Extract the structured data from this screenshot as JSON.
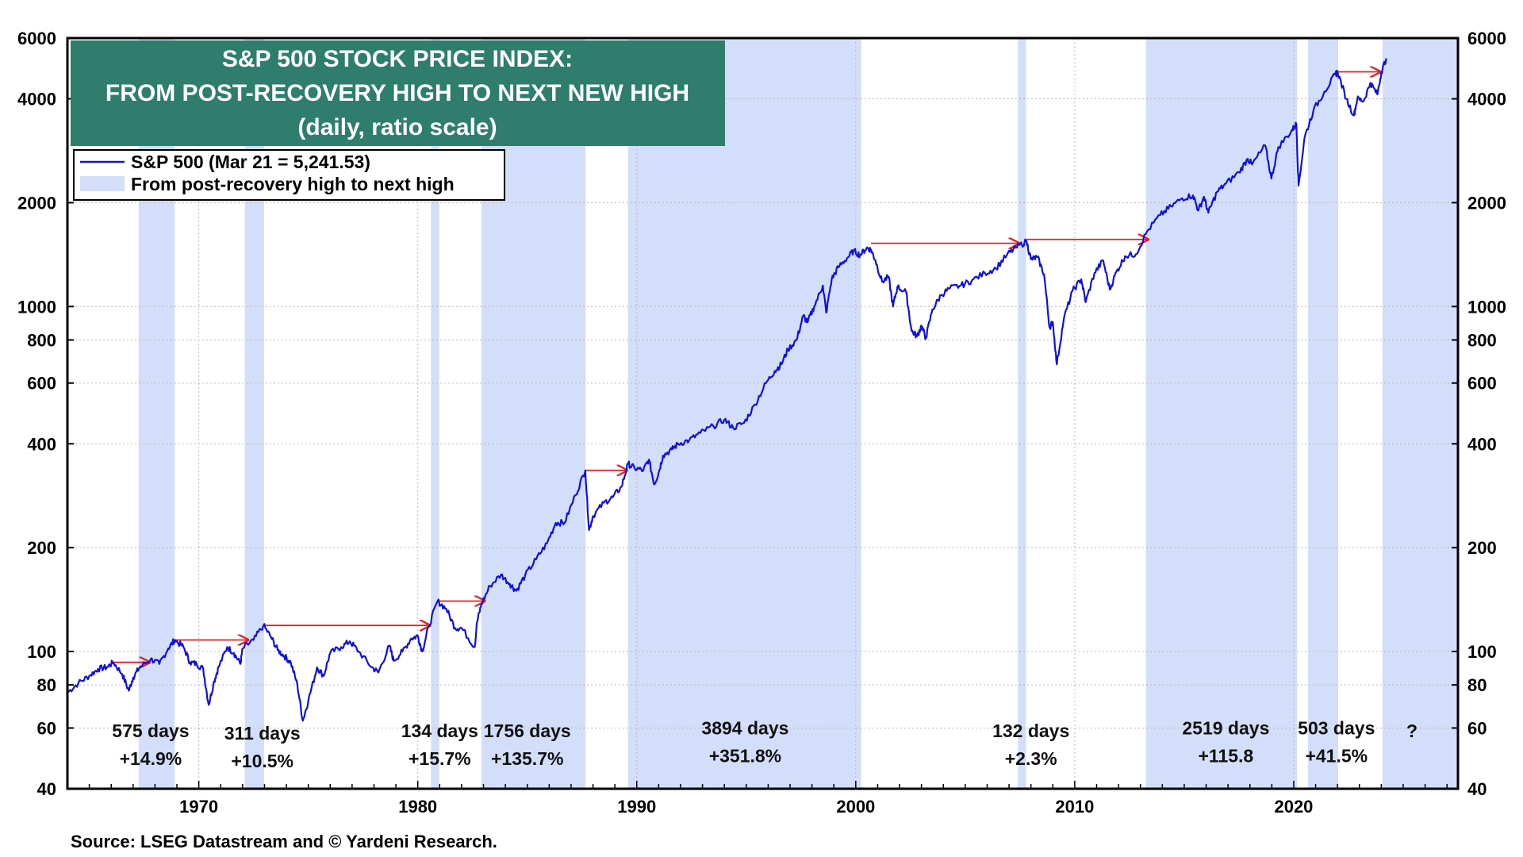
{
  "chart_data": {
    "type": "line",
    "title": {
      "line1": "S&P 500 STOCK PRICE INDEX:",
      "line2": "FROM POST-RECOVERY HIGH TO NEXT NEW HIGH",
      "line3": "(daily, ratio scale)"
    },
    "legend": {
      "series_label": "S&P 500 (Mar 21 = 5,241.53)",
      "shade_label": "From post-recovery high to next high",
      "placement": "top-left"
    },
    "source": "Source: LSEG Datastream and © Yardeni Research.",
    "y_scale": "log",
    "ylim": [
      40,
      6000
    ],
    "xlim": [
      1964.0,
      2027.5
    ],
    "y_ticks": [
      {
        "value": 40,
        "label": "40"
      },
      {
        "value": 60,
        "label": "60"
      },
      {
        "value": 80,
        "label": "80"
      },
      {
        "value": 100,
        "label": "100"
      },
      {
        "value": 200,
        "label": "200"
      },
      {
        "value": 400,
        "label": "400"
      },
      {
        "value": 600,
        "label": "600"
      },
      {
        "value": 800,
        "label": "800"
      },
      {
        "value": 1000,
        "label": "1000"
      },
      {
        "value": 2000,
        "label": "2000"
      },
      {
        "value": 4000,
        "label": "4000"
      },
      {
        "value": 6000,
        "label": "6000"
      }
    ],
    "x_ticks": [
      {
        "value": 1970,
        "label": "1970"
      },
      {
        "value": 1980,
        "label": "1980"
      },
      {
        "value": 1990,
        "label": "1990"
      },
      {
        "value": 2000,
        "label": "2000"
      },
      {
        "value": 2010,
        "label": "2010"
      },
      {
        "value": 2020,
        "label": "2020"
      }
    ],
    "shade_color": "#d3defa",
    "line_color": "#1010e0",
    "arrow_color": "#e02020",
    "title_bg": "#2e7d6d",
    "series": [
      {
        "name": "S&P 500",
        "points": [
          [
            1964.0,
            76
          ],
          [
            1964.5,
            81
          ],
          [
            1965.0,
            85
          ],
          [
            1965.4,
            89
          ],
          [
            1965.8,
            90
          ],
          [
            1966.1,
            93
          ],
          [
            1966.5,
            86
          ],
          [
            1966.8,
            77
          ],
          [
            1967.0,
            84
          ],
          [
            1967.3,
            90
          ],
          [
            1967.8,
            95
          ],
          [
            1968.2,
            92
          ],
          [
            1968.6,
            102
          ],
          [
            1968.9,
            108
          ],
          [
            1969.3,
            103
          ],
          [
            1969.6,
            93
          ],
          [
            1969.9,
            92
          ],
          [
            1970.2,
            89
          ],
          [
            1970.45,
            70
          ],
          [
            1970.7,
            82
          ],
          [
            1970.9,
            90
          ],
          [
            1971.3,
            103
          ],
          [
            1971.6,
            99
          ],
          [
            1971.9,
            92
          ],
          [
            1972.0,
            102
          ],
          [
            1972.5,
            108
          ],
          [
            1972.95,
            119
          ],
          [
            1973.3,
            110
          ],
          [
            1973.6,
            101
          ],
          [
            1973.9,
            97
          ],
          [
            1974.2,
            93
          ],
          [
            1974.5,
            80
          ],
          [
            1974.75,
            63
          ],
          [
            1975.0,
            72
          ],
          [
            1975.4,
            90
          ],
          [
            1975.7,
            85
          ],
          [
            1976.0,
            99
          ],
          [
            1976.5,
            103
          ],
          [
            1976.9,
            107
          ],
          [
            1977.3,
            100
          ],
          [
            1977.9,
            90
          ],
          [
            1978.2,
            87
          ],
          [
            1978.7,
            104
          ],
          [
            1978.9,
            94
          ],
          [
            1979.3,
            100
          ],
          [
            1979.7,
            109
          ],
          [
            1980.0,
            111
          ],
          [
            1980.2,
            100
          ],
          [
            1980.5,
            118
          ],
          [
            1980.9,
            140
          ],
          [
            1981.3,
            133
          ],
          [
            1981.7,
            117
          ],
          [
            1982.0,
            117
          ],
          [
            1982.6,
            103
          ],
          [
            1982.7,
            121
          ],
          [
            1982.9,
            137
          ],
          [
            1983.3,
            155
          ],
          [
            1983.8,
            167
          ],
          [
            1984.2,
            157
          ],
          [
            1984.5,
            150
          ],
          [
            1984.9,
            166
          ],
          [
            1985.4,
            185
          ],
          [
            1985.9,
            206
          ],
          [
            1986.3,
            236
          ],
          [
            1986.7,
            236
          ],
          [
            1987.2,
            284
          ],
          [
            1987.65,
            335
          ],
          [
            1987.82,
            225
          ],
          [
            1988.0,
            247
          ],
          [
            1988.5,
            270
          ],
          [
            1988.9,
            280
          ],
          [
            1989.3,
            300
          ],
          [
            1989.6,
            350
          ],
          [
            1989.9,
            340
          ],
          [
            1990.3,
            335
          ],
          [
            1990.55,
            360
          ],
          [
            1990.8,
            305
          ],
          [
            1991.0,
            330
          ],
          [
            1991.2,
            370
          ],
          [
            1991.6,
            385
          ],
          [
            1991.9,
            400
          ],
          [
            1992.4,
            410
          ],
          [
            1992.9,
            430
          ],
          [
            1993.5,
            450
          ],
          [
            1994.0,
            470
          ],
          [
            1994.4,
            445
          ],
          [
            1994.9,
            460
          ],
          [
            1995.4,
            520
          ],
          [
            1995.9,
            600
          ],
          [
            1996.3,
            650
          ],
          [
            1996.6,
            680
          ],
          [
            1996.9,
            750
          ],
          [
            1997.3,
            800
          ],
          [
            1997.6,
            940
          ],
          [
            1997.8,
            900
          ],
          [
            1998.1,
            1000
          ],
          [
            1998.5,
            1150
          ],
          [
            1998.65,
            960
          ],
          [
            1998.9,
            1200
          ],
          [
            1999.2,
            1300
          ],
          [
            1999.6,
            1380
          ],
          [
            1999.9,
            1450
          ],
          [
            2000.2,
            1410
          ],
          [
            2000.5,
            1480
          ],
          [
            2000.7,
            1460
          ],
          [
            2000.9,
            1360
          ],
          [
            2001.2,
            1180
          ],
          [
            2001.5,
            1220
          ],
          [
            2001.7,
            1000
          ],
          [
            2001.9,
            1140
          ],
          [
            2002.3,
            1100
          ],
          [
            2002.55,
            850
          ],
          [
            2002.8,
            820
          ],
          [
            2003.0,
            880
          ],
          [
            2003.2,
            810
          ],
          [
            2003.5,
            980
          ],
          [
            2003.9,
            1080
          ],
          [
            2004.3,
            1130
          ],
          [
            2004.8,
            1150
          ],
          [
            2005.3,
            1190
          ],
          [
            2005.9,
            1250
          ],
          [
            2006.4,
            1290
          ],
          [
            2006.9,
            1410
          ],
          [
            2007.3,
            1480
          ],
          [
            2007.8,
            1545
          ],
          [
            2008.0,
            1370
          ],
          [
            2008.3,
            1390
          ],
          [
            2008.6,
            1240
          ],
          [
            2008.85,
            870
          ],
          [
            2009.0,
            900
          ],
          [
            2009.18,
            680
          ],
          [
            2009.5,
            920
          ],
          [
            2009.9,
            1110
          ],
          [
            2010.3,
            1200
          ],
          [
            2010.5,
            1030
          ],
          [
            2010.9,
            1250
          ],
          [
            2011.3,
            1360
          ],
          [
            2011.6,
            1120
          ],
          [
            2011.9,
            1260
          ],
          [
            2012.3,
            1400
          ],
          [
            2012.8,
            1420
          ],
          [
            2013.3,
            1650
          ],
          [
            2013.9,
            1840
          ],
          [
            2014.4,
            1950
          ],
          [
            2014.9,
            2060
          ],
          [
            2015.4,
            2100
          ],
          [
            2015.65,
            1900
          ],
          [
            2015.9,
            2080
          ],
          [
            2016.1,
            1870
          ],
          [
            2016.5,
            2150
          ],
          [
            2016.9,
            2270
          ],
          [
            2017.5,
            2450
          ],
          [
            2017.9,
            2680
          ],
          [
            2018.1,
            2580
          ],
          [
            2018.7,
            2930
          ],
          [
            2018.98,
            2350
          ],
          [
            2019.3,
            2900
          ],
          [
            2019.9,
            3230
          ],
          [
            2020.12,
            3380
          ],
          [
            2020.22,
            2240
          ],
          [
            2020.5,
            3100
          ],
          [
            2020.9,
            3700
          ],
          [
            2021.4,
            4200
          ],
          [
            2021.9,
            4700
          ],
          [
            2022.0,
            4790
          ],
          [
            2022.4,
            4000
          ],
          [
            2022.75,
            3580
          ],
          [
            2022.9,
            4000
          ],
          [
            2023.2,
            3950
          ],
          [
            2023.5,
            4450
          ],
          [
            2023.82,
            4120
          ],
          [
            2024.0,
            4770
          ],
          [
            2024.22,
            5241
          ]
        ]
      }
    ],
    "shaded_periods": [
      {
        "start": 1967.25,
        "end": 1968.9
      },
      {
        "start": 1972.1,
        "end": 1972.98
      },
      {
        "start": 1980.6,
        "end": 1980.98
      },
      {
        "start": 1982.9,
        "end": 1987.66
      },
      {
        "start": 1989.6,
        "end": 2000.25
      },
      {
        "start": 2007.4,
        "end": 2007.78
      },
      {
        "start": 2013.25,
        "end": 2020.15
      },
      {
        "start": 2020.65,
        "end": 2022.03
      },
      {
        "start": 2024.05,
        "end": 2027.5
      }
    ],
    "arrows": [
      {
        "x1": 1966.1,
        "x2": 1967.8,
        "y": 93
      },
      {
        "x1": 1968.9,
        "x2": 1972.3,
        "y": 108
      },
      {
        "x1": 1972.95,
        "x2": 1980.6,
        "y": 119
      },
      {
        "x1": 1980.9,
        "x2": 1983.1,
        "y": 140
      },
      {
        "x1": 1987.65,
        "x2": 1989.6,
        "y": 335
      },
      {
        "x1": 2000.7,
        "x2": 2007.5,
        "y": 1525
      },
      {
        "x1": 2007.8,
        "x2": 2013.4,
        "y": 1565
      },
      {
        "x1": 2022.0,
        "x2": 2024.0,
        "y": 4790
      }
    ],
    "annotations": [
      {
        "x": 1967.8,
        "y": 56.5,
        "days": "575 days",
        "pct": "+14.9%"
      },
      {
        "x": 1972.9,
        "y": 55.5,
        "days": "311 days",
        "pct": "+10.5%"
      },
      {
        "x": 1981.0,
        "y": 56.5,
        "days": "134 days",
        "pct": "+15.7%"
      },
      {
        "x": 1985.0,
        "y": 56.5,
        "days": "1756 days",
        "pct": "+135.7%"
      },
      {
        "x": 1994.95,
        "y": 57.5,
        "days": "3894 days",
        "pct": "+351.8%"
      },
      {
        "x": 2008.0,
        "y": 56.5,
        "days": "132 days",
        "pct": "+2.3%"
      },
      {
        "x": 2016.9,
        "y": 57.5,
        "days": "2519 days",
        "pct": "+115.8"
      },
      {
        "x": 2021.95,
        "y": 57.5,
        "days": "503 days",
        "pct": "+41.5%"
      },
      {
        "x": 2025.4,
        "y": 56.5,
        "days": "?",
        "pct": ""
      }
    ]
  }
}
